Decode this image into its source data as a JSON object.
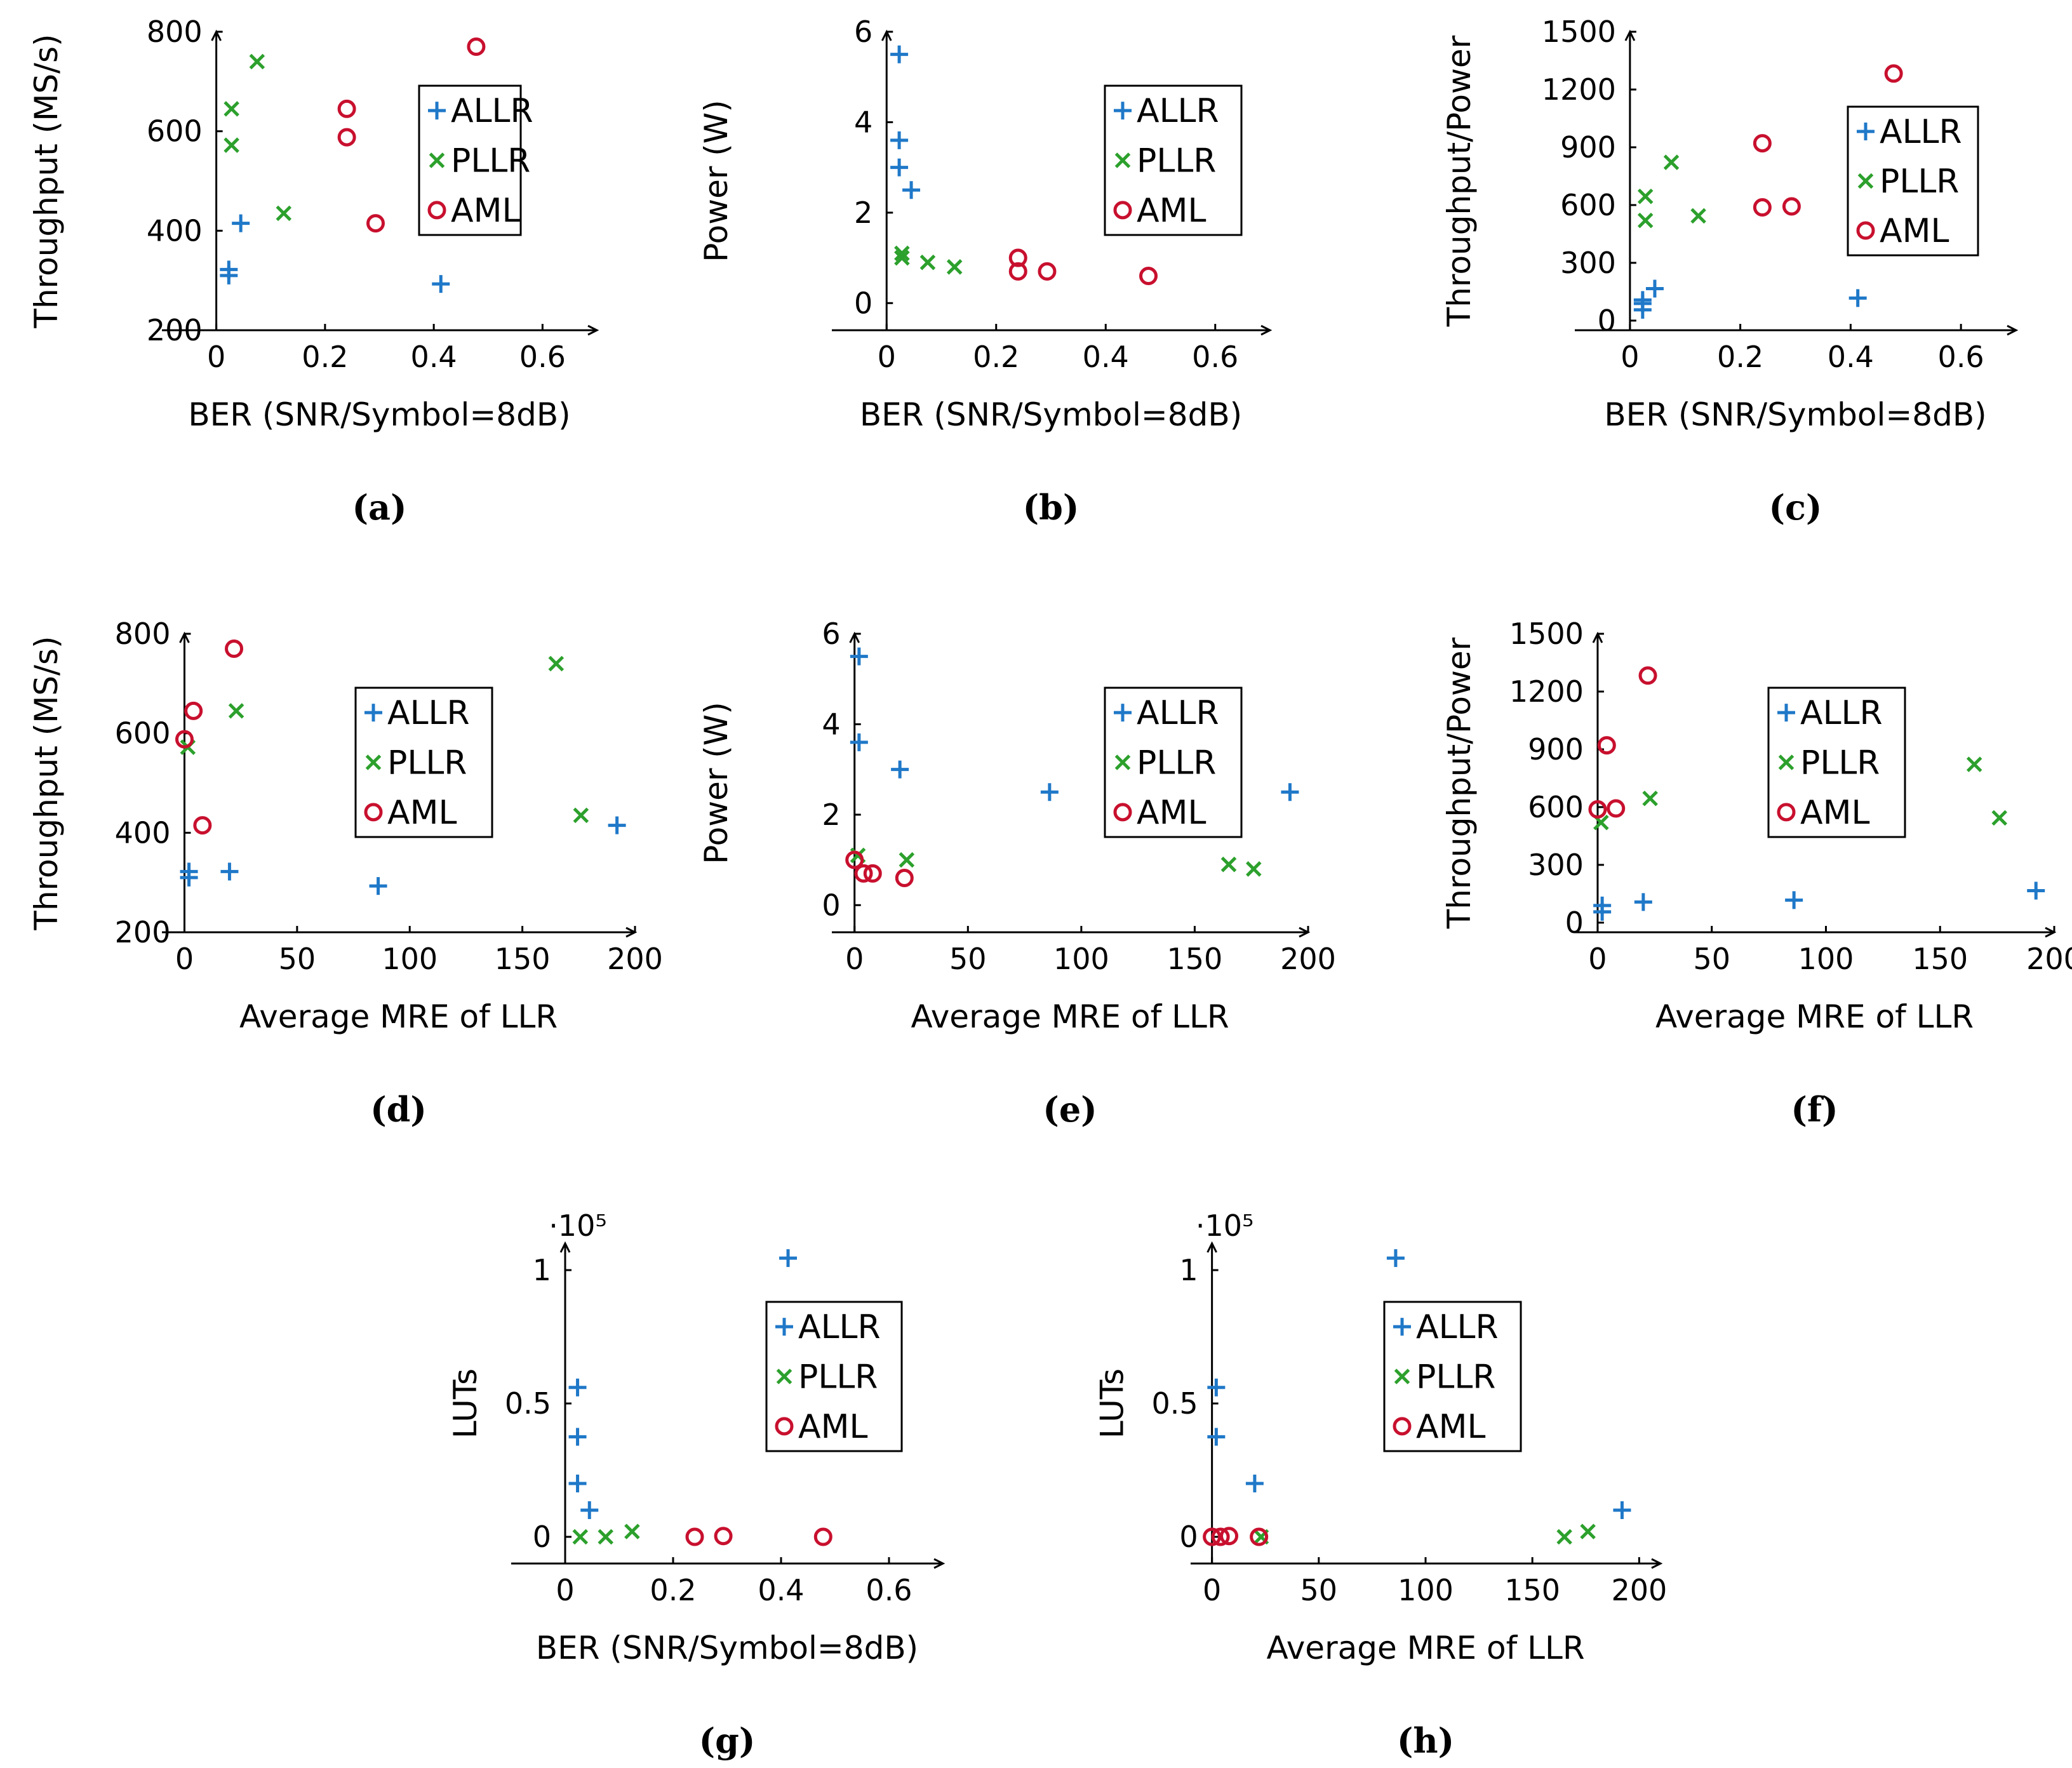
{
  "colors": {
    "ALLR": "#1f78c8",
    "PLLR": "#2ca02c",
    "AML": "#c8102e"
  },
  "chart_data": [
    {
      "id": "a",
      "type": "scatter",
      "panel_label": "(a)",
      "xlabel": "BER (SNR/Symbol=8dB)",
      "ylabel": "Throughput (MS/s)",
      "xlim": [
        -0.1,
        0.7
      ],
      "ylim": [
        200,
        800
      ],
      "xticks": [
        0,
        0.2,
        0.4,
        0.6
      ],
      "xtick_labels": [
        "0",
        "0.2",
        "0.4",
        "0.6"
      ],
      "yticks": [
        200,
        400,
        600,
        800
      ],
      "ytick_labels": [
        "200",
        "400",
        "600",
        "800"
      ],
      "legend_position": "center-right",
      "series": [
        {
          "name": "ALLR",
          "marker": "plus",
          "points": [
            [
              0.023,
              310
            ],
            [
              0.023,
              322
            ],
            [
              0.045,
              415
            ],
            [
              0.413,
              293
            ]
          ]
        },
        {
          "name": "PLLR",
          "marker": "cross",
          "points": [
            [
              0.028,
              572
            ],
            [
              0.028,
              645
            ],
            [
              0.075,
              740
            ],
            [
              0.124,
              435
            ]
          ]
        },
        {
          "name": "AML",
          "marker": "circle",
          "points": [
            [
              0.24,
              588
            ],
            [
              0.24,
              645
            ],
            [
              0.293,
              415
            ],
            [
              0.478,
              770
            ]
          ]
        }
      ]
    },
    {
      "id": "b",
      "type": "scatter",
      "panel_label": "(b)",
      "xlabel": "BER (SNR/Symbol=8dB)",
      "ylabel": "Power (W)",
      "xlim": [
        -0.1,
        0.7
      ],
      "ylim": [
        -0.6,
        6.0
      ],
      "xticks": [
        0,
        0.2,
        0.4,
        0.6
      ],
      "xtick_labels": [
        "0",
        "0.2",
        "0.4",
        "0.6"
      ],
      "yticks": [
        0,
        2,
        4,
        6
      ],
      "ytick_labels": [
        "0",
        "2",
        "4",
        "6"
      ],
      "legend_position": "center-right",
      "series": [
        {
          "name": "ALLR",
          "marker": "plus",
          "points": [
            [
              0.023,
              5.5
            ],
            [
              0.023,
              3.6
            ],
            [
              0.023,
              3.0
            ],
            [
              0.045,
              2.5
            ]
          ]
        },
        {
          "name": "PLLR",
          "marker": "cross",
          "points": [
            [
              0.028,
              1.1
            ],
            [
              0.028,
              1.0
            ],
            [
              0.075,
              0.9
            ],
            [
              0.124,
              0.8
            ]
          ]
        },
        {
          "name": "AML",
          "marker": "circle",
          "points": [
            [
              0.24,
              1.0
            ],
            [
              0.24,
              0.7
            ],
            [
              0.293,
              0.7
            ],
            [
              0.478,
              0.6
            ]
          ]
        }
      ]
    },
    {
      "id": "c",
      "type": "scatter",
      "panel_label": "(c)",
      "xlabel": "BER (SNR/Symbol=8dB)",
      "ylabel": "Throughput/Power",
      "xlim": [
        -0.1,
        0.7
      ],
      "ylim": [
        -50,
        1500
      ],
      "xticks": [
        0,
        0.2,
        0.4,
        0.6
      ],
      "xtick_labels": [
        "0",
        "0.2",
        "0.4",
        "0.6"
      ],
      "yticks": [
        0,
        300,
        600,
        900,
        1200,
        1500
      ],
      "ytick_labels": [
        "0",
        "300",
        "600",
        "900",
        "1200",
        "1500"
      ],
      "legend_position": "center-right",
      "series": [
        {
          "name": "ALLR",
          "marker": "plus",
          "points": [
            [
              0.023,
              56
            ],
            [
              0.023,
              89
            ],
            [
              0.023,
              107
            ],
            [
              0.045,
              166
            ],
            [
              0.413,
              117
            ]
          ]
        },
        {
          "name": "PLLR",
          "marker": "cross",
          "points": [
            [
              0.028,
              520
            ],
            [
              0.028,
              645
            ],
            [
              0.075,
              822
            ],
            [
              0.124,
              544
            ]
          ]
        },
        {
          "name": "AML",
          "marker": "circle",
          "points": [
            [
              0.24,
              588
            ],
            [
              0.24,
              921
            ],
            [
              0.293,
              593
            ],
            [
              0.478,
              1283
            ]
          ]
        }
      ]
    },
    {
      "id": "d",
      "type": "scatter",
      "panel_label": "(d)",
      "xlabel": "Average MRE of LLR",
      "ylabel": "Throughput (MS/s)",
      "xlim": [
        -10,
        200
      ],
      "ylim": [
        200,
        800
      ],
      "xticks": [
        0,
        50,
        100,
        150,
        200
      ],
      "xtick_labels": [
        "0",
        "50",
        "100",
        "150",
        "200"
      ],
      "yticks": [
        200,
        400,
        600,
        800
      ],
      "ytick_labels": [
        "200",
        "400",
        "600",
        "800"
      ],
      "legend_position": "center",
      "series": [
        {
          "name": "ALLR",
          "marker": "plus",
          "points": [
            [
              2,
              310
            ],
            [
              2,
              322
            ],
            [
              20,
              322
            ],
            [
              86,
              293
            ],
            [
              192,
              415
            ]
          ]
        },
        {
          "name": "PLLR",
          "marker": "cross",
          "points": [
            [
              1.5,
              572
            ],
            [
              23,
              645
            ],
            [
              165,
              740
            ],
            [
              176,
              435
            ]
          ]
        },
        {
          "name": "AML",
          "marker": "circle",
          "points": [
            [
              0,
              588
            ],
            [
              4,
              645
            ],
            [
              8,
              415
            ],
            [
              22,
              770
            ]
          ]
        }
      ]
    },
    {
      "id": "e",
      "type": "scatter",
      "panel_label": "(e)",
      "xlabel": "Average MRE of LLR",
      "ylabel": "Power (W)",
      "xlim": [
        -10,
        200
      ],
      "ylim": [
        -0.6,
        6.0
      ],
      "xticks": [
        0,
        50,
        100,
        150,
        200
      ],
      "xtick_labels": [
        "0",
        "50",
        "100",
        "150",
        "200"
      ],
      "yticks": [
        0,
        2,
        4,
        6
      ],
      "ytick_labels": [
        "0",
        "2",
        "4",
        "6"
      ],
      "legend_position": "center-right",
      "series": [
        {
          "name": "ALLR",
          "marker": "plus",
          "points": [
            [
              2,
              5.5
            ],
            [
              2,
              3.6
            ],
            [
              20,
              3.0
            ],
            [
              86,
              2.5
            ],
            [
              192,
              2.5
            ]
          ]
        },
        {
          "name": "PLLR",
          "marker": "cross",
          "points": [
            [
              1.5,
              1.1
            ],
            [
              23,
              1.0
            ],
            [
              165,
              0.9
            ],
            [
              176,
              0.8
            ]
          ]
        },
        {
          "name": "AML",
          "marker": "circle",
          "points": [
            [
              0,
              1.0
            ],
            [
              4,
              0.7
            ],
            [
              8,
              0.7
            ],
            [
              22,
              0.6
            ]
          ]
        }
      ]
    },
    {
      "id": "f",
      "type": "scatter",
      "panel_label": "(f)",
      "xlabel": "Average MRE of LLR",
      "ylabel": "Throughput/Power",
      "xlim": [
        -10,
        200
      ],
      "ylim": [
        -50,
        1500
      ],
      "xticks": [
        0,
        50,
        100,
        150,
        200
      ],
      "xtick_labels": [
        "0",
        "50",
        "100",
        "150",
        "200"
      ],
      "yticks": [
        0,
        300,
        600,
        900,
        1200,
        1500
      ],
      "ytick_labels": [
        "0",
        "300",
        "600",
        "900",
        "1200",
        "1500"
      ],
      "legend_position": "center-right",
      "series": [
        {
          "name": "ALLR",
          "marker": "plus",
          "points": [
            [
              2,
              56
            ],
            [
              2,
              89
            ],
            [
              20,
              107
            ],
            [
              86,
              117
            ],
            [
              192,
              166
            ]
          ]
        },
        {
          "name": "PLLR",
          "marker": "cross",
          "points": [
            [
              1.5,
              520
            ],
            [
              23,
              645
            ],
            [
              165,
              822
            ],
            [
              176,
              544
            ]
          ]
        },
        {
          "name": "AML",
          "marker": "circle",
          "points": [
            [
              0,
              588
            ],
            [
              4,
              921
            ],
            [
              8,
              593
            ],
            [
              22,
              1283
            ]
          ]
        }
      ]
    },
    {
      "id": "g",
      "type": "scatter",
      "panel_label": "(g)",
      "xlabel": "BER (SNR/Symbol=8dB)",
      "ylabel": "LUTs",
      "y_multiplier": "·10⁵",
      "xlim": [
        -0.1,
        0.7
      ],
      "ylim": [
        -0.1,
        1.1
      ],
      "xticks": [
        0,
        0.2,
        0.4,
        0.6
      ],
      "xtick_labels": [
        "0",
        "0.2",
        "0.4",
        "0.6"
      ],
      "yticks": [
        0,
        0.5,
        1
      ],
      "ytick_labels": [
        "0",
        "0.5",
        "1"
      ],
      "legend_position": "center-right",
      "series": [
        {
          "name": "ALLR",
          "marker": "plus",
          "points": [
            [
              0.023,
              0.56
            ],
            [
              0.023,
              0.375
            ],
            [
              0.023,
              0.2
            ],
            [
              0.045,
              0.1
            ],
            [
              0.413,
              1.045
            ]
          ]
        },
        {
          "name": "PLLR",
          "marker": "cross",
          "points": [
            [
              0.028,
              0.0
            ],
            [
              0.075,
              0.0
            ],
            [
              0.124,
              0.02
            ]
          ]
        },
        {
          "name": "AML",
          "marker": "circle",
          "points": [
            [
              0.24,
              0.0
            ],
            [
              0.293,
              0.003
            ],
            [
              0.478,
              0.0
            ]
          ]
        }
      ]
    },
    {
      "id": "h",
      "type": "scatter",
      "panel_label": "(h)",
      "xlabel": "Average MRE of LLR",
      "ylabel": "LUTs",
      "y_multiplier": "·10⁵",
      "xlim": [
        -10,
        210
      ],
      "ylim": [
        -0.1,
        1.1
      ],
      "xticks": [
        0,
        50,
        100,
        150,
        200
      ],
      "xtick_labels": [
        "0",
        "50",
        "100",
        "150",
        "200"
      ],
      "yticks": [
        0,
        0.5,
        1
      ],
      "ytick_labels": [
        "0",
        "0.5",
        "1"
      ],
      "legend_position": "center",
      "series": [
        {
          "name": "ALLR",
          "marker": "plus",
          "points": [
            [
              2,
              0.56
            ],
            [
              2,
              0.375
            ],
            [
              20,
              0.2
            ],
            [
              86,
              1.045
            ],
            [
              192,
              0.1
            ]
          ]
        },
        {
          "name": "PLLR",
          "marker": "cross",
          "points": [
            [
              23,
              0.0
            ],
            [
              165,
              0.0
            ],
            [
              176,
              0.02
            ]
          ]
        },
        {
          "name": "AML",
          "marker": "circle",
          "points": [
            [
              0,
              0.0
            ],
            [
              4,
              0.0
            ],
            [
              8,
              0.003
            ],
            [
              22,
              0.0
            ]
          ]
        }
      ]
    }
  ]
}
